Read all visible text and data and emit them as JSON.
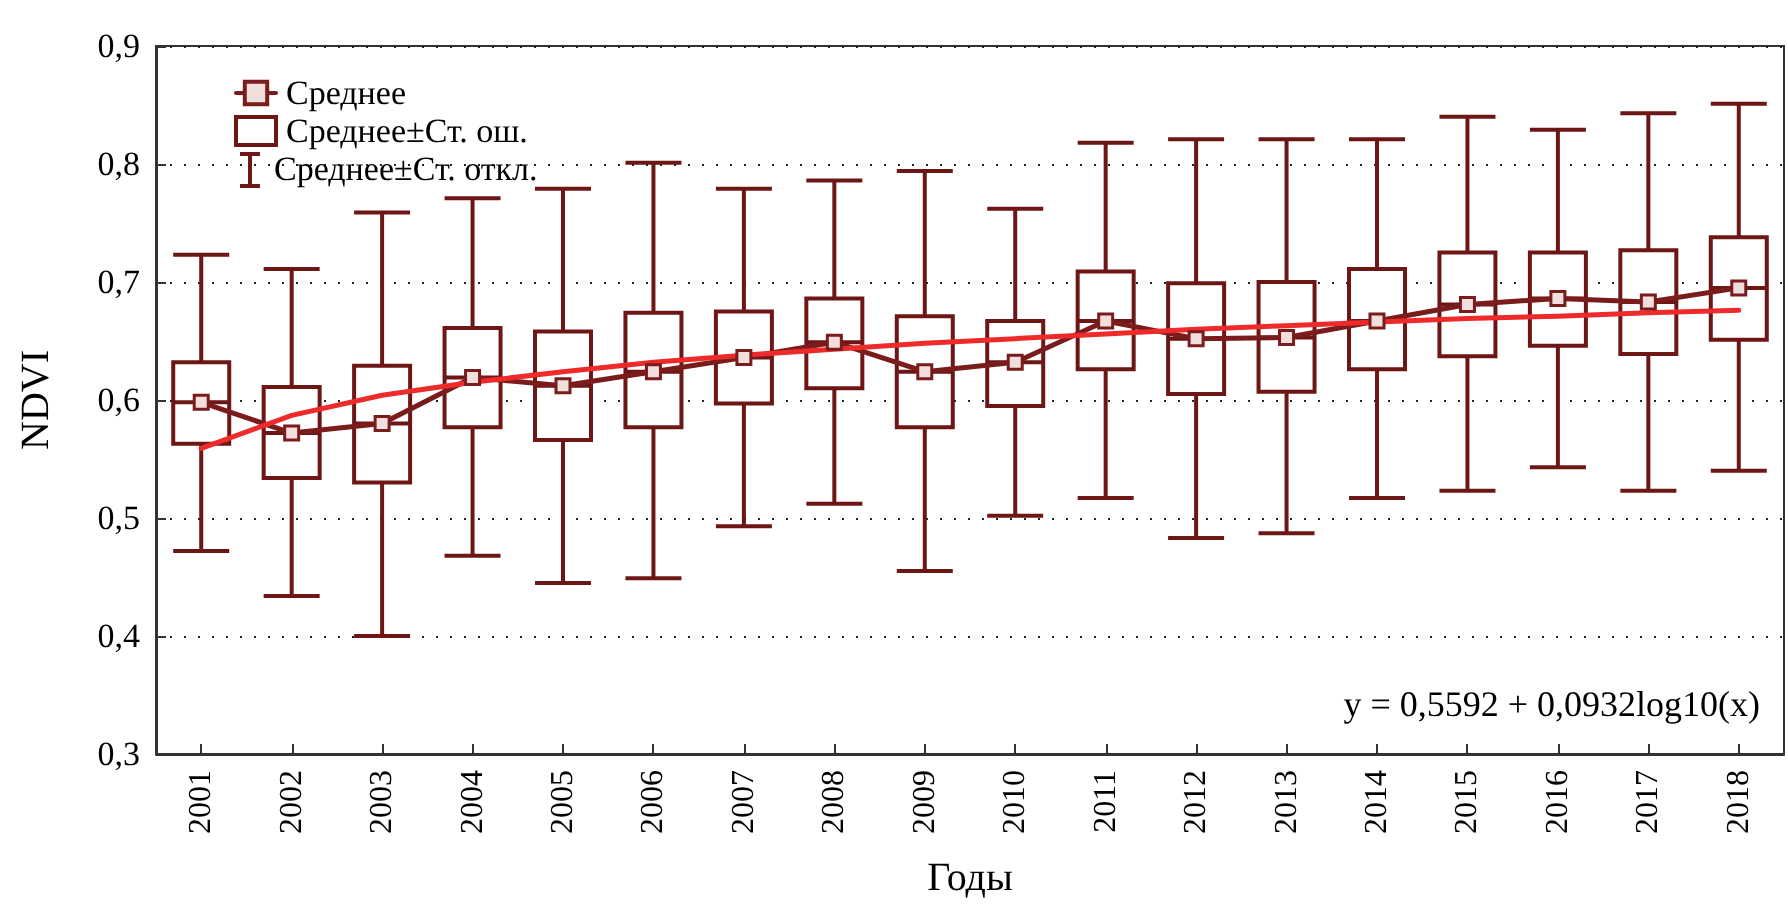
{
  "chart_data": {
    "type": "box",
    "xlabel": "Годы",
    "ylabel": "NDVI",
    "categories": [
      "2001",
      "2002",
      "2003",
      "2004",
      "2005",
      "2006",
      "2007",
      "2008",
      "2009",
      "2010",
      "2011",
      "2012",
      "2013",
      "2014",
      "2015",
      "2016",
      "2017",
      "2018"
    ],
    "ylim": [
      0.3,
      0.9
    ],
    "yticks": [
      {
        "value": 0.3,
        "label": "0,3"
      },
      {
        "value": 0.4,
        "label": "0,4"
      },
      {
        "value": 0.5,
        "label": "0,5"
      },
      {
        "value": 0.6,
        "label": "0,6"
      },
      {
        "value": 0.7,
        "label": "0,7"
      },
      {
        "value": 0.8,
        "label": "0,8"
      },
      {
        "value": 0.9,
        "label": "0,9"
      }
    ],
    "series": [
      {
        "name": "Среднее",
        "type": "line",
        "color": "#7b1c1c",
        "marker": "square",
        "values": [
          0.598,
          0.572,
          0.58,
          0.619,
          0.612,
          0.624,
          0.636,
          0.649,
          0.624,
          0.632,
          0.667,
          0.652,
          0.653,
          0.667,
          0.681,
          0.686,
          0.683,
          0.695
        ]
      },
      {
        "name": "Среднее±Ст. ош.",
        "type": "box",
        "color": "#6e1616",
        "boxes": [
          {
            "low": 0.472,
            "q1": 0.563,
            "median": 0.598,
            "q3": 0.632,
            "high": 0.723
          },
          {
            "low": 0.434,
            "q1": 0.534,
            "median": 0.572,
            "q3": 0.611,
            "high": 0.711
          },
          {
            "low": 0.4,
            "q1": 0.53,
            "median": 0.58,
            "q3": 0.629,
            "high": 0.759
          },
          {
            "low": 0.468,
            "q1": 0.577,
            "median": 0.619,
            "q3": 0.661,
            "high": 0.771
          },
          {
            "low": 0.445,
            "q1": 0.566,
            "median": 0.612,
            "q3": 0.658,
            "high": 0.779
          },
          {
            "low": 0.449,
            "q1": 0.577,
            "median": 0.624,
            "q3": 0.674,
            "high": 0.801
          },
          {
            "low": 0.493,
            "q1": 0.597,
            "median": 0.636,
            "q3": 0.675,
            "high": 0.779
          },
          {
            "low": 0.512,
            "q1": 0.61,
            "median": 0.649,
            "q3": 0.686,
            "high": 0.786
          },
          {
            "low": 0.455,
            "q1": 0.577,
            "median": 0.624,
            "q3": 0.671,
            "high": 0.794
          },
          {
            "low": 0.502,
            "q1": 0.595,
            "median": 0.632,
            "q3": 0.667,
            "high": 0.762
          },
          {
            "low": 0.517,
            "q1": 0.626,
            "median": 0.667,
            "q3": 0.709,
            "high": 0.818
          },
          {
            "low": 0.483,
            "q1": 0.605,
            "median": 0.652,
            "q3": 0.699,
            "high": 0.821
          },
          {
            "low": 0.487,
            "q1": 0.607,
            "median": 0.653,
            "q3": 0.7,
            "high": 0.821
          },
          {
            "low": 0.517,
            "q1": 0.626,
            "median": 0.667,
            "q3": 0.711,
            "high": 0.821
          },
          {
            "low": 0.523,
            "q1": 0.637,
            "median": 0.681,
            "q3": 0.725,
            "high": 0.84
          },
          {
            "low": 0.543,
            "q1": 0.646,
            "median": 0.686,
            "q3": 0.725,
            "high": 0.829
          },
          {
            "low": 0.523,
            "q1": 0.639,
            "median": 0.683,
            "q3": 0.727,
            "high": 0.843
          },
          {
            "low": 0.54,
            "q1": 0.651,
            "median": 0.695,
            "q3": 0.738,
            "high": 0.851
          }
        ]
      },
      {
        "type": "line",
        "color": "#ee2a2a",
        "marker": "none",
        "values": [
          0.559,
          0.587,
          0.604,
          0.615,
          0.624,
          0.632,
          0.638,
          0.643,
          0.648,
          0.652,
          0.656,
          0.66,
          0.663,
          0.666,
          0.669,
          0.671,
          0.674,
          0.676
        ]
      }
    ],
    "annotations": [
      "Среднее±Ст. откл.",
      "y = 0,5592 + 0,0932log10(x)"
    ],
    "grid": "y",
    "legend": "top left"
  }
}
